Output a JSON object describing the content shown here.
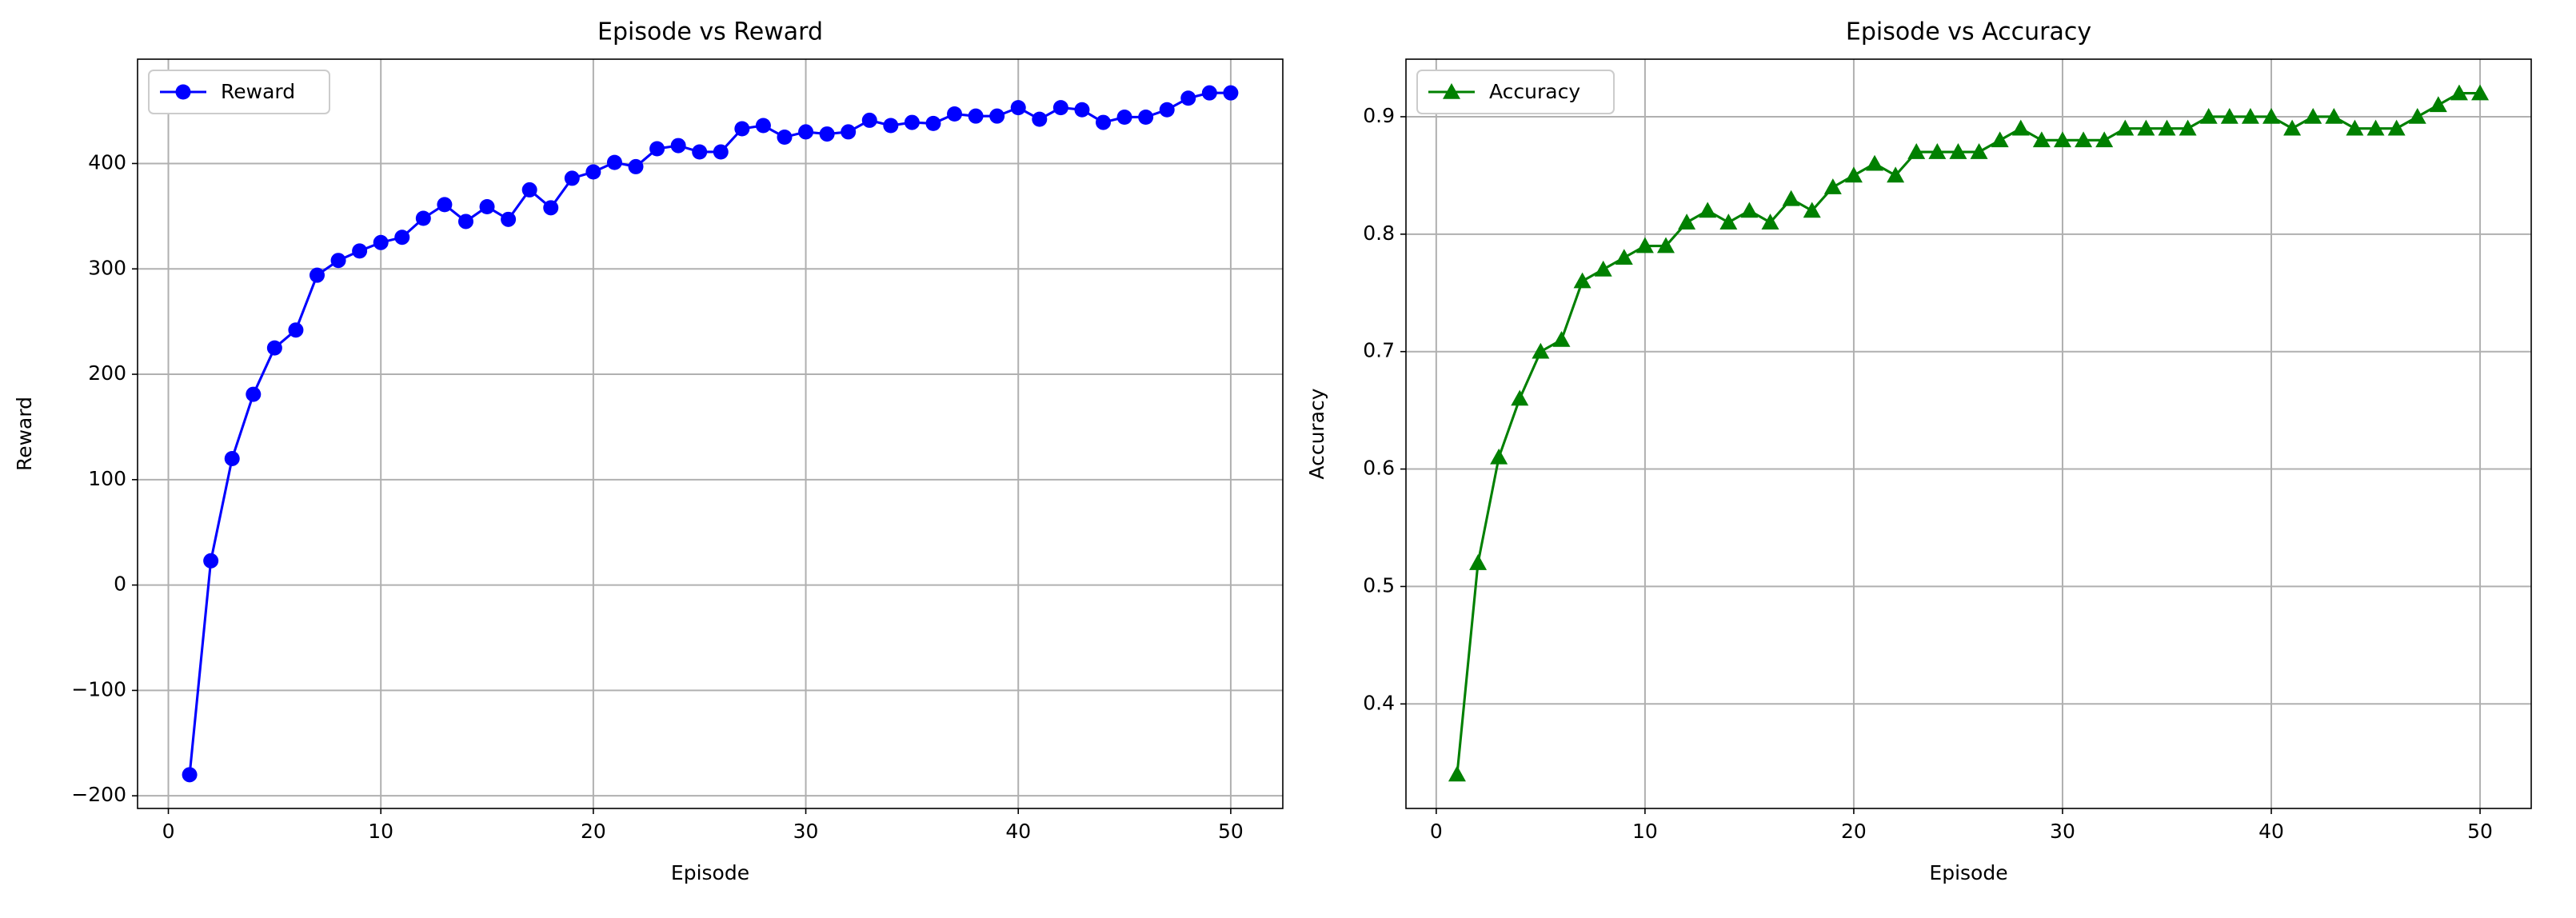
{
  "chart_data": [
    {
      "type": "line",
      "title": "Episode vs Reward",
      "x_label": "Episode",
      "y_label": "Reward",
      "x": [
        1,
        2,
        3,
        4,
        5,
        6,
        7,
        8,
        9,
        10,
        11,
        12,
        13,
        14,
        15,
        16,
        17,
        18,
        19,
        20,
        21,
        22,
        23,
        24,
        25,
        26,
        27,
        28,
        29,
        30,
        31,
        32,
        33,
        34,
        35,
        36,
        37,
        38,
        39,
        40,
        41,
        42,
        43,
        44,
        45,
        46,
        47,
        48,
        49,
        50
      ],
      "series": [
        {
          "name": "Reward",
          "color": "#0000ff",
          "marker": "circle",
          "values": [
            -180,
            23,
            120,
            181,
            225,
            242,
            294,
            308,
            317,
            325,
            330,
            348,
            361,
            345,
            359,
            347,
            375,
            358,
            386,
            392,
            401,
            397,
            414,
            417,
            411,
            411,
            433,
            436,
            425,
            430,
            428,
            430,
            441,
            436,
            439,
            438,
            447,
            445,
            445,
            453,
            442,
            453,
            451,
            439,
            444,
            444,
            451,
            462,
            467,
            467
          ]
        }
      ],
      "xlim": [
        -1.45,
        52.45
      ],
      "xticks": [
        0,
        10,
        20,
        30,
        40,
        50
      ],
      "ylim": [
        -212,
        499
      ],
      "yticks": [
        {
          "value": -200,
          "label": "−200"
        },
        {
          "value": -100,
          "label": "−100"
        },
        0,
        100,
        200,
        300,
        400
      ],
      "grid": true,
      "legend": "upper left"
    },
    {
      "type": "line",
      "title": "Episode vs Accuracy",
      "x_label": "Episode",
      "y_label": "Accuracy",
      "x": [
        1,
        2,
        3,
        4,
        5,
        6,
        7,
        8,
        9,
        10,
        11,
        12,
        13,
        14,
        15,
        16,
        17,
        18,
        19,
        20,
        21,
        22,
        23,
        24,
        25,
        26,
        27,
        28,
        29,
        30,
        31,
        32,
        33,
        34,
        35,
        36,
        37,
        38,
        39,
        40,
        41,
        42,
        43,
        44,
        45,
        46,
        47,
        48,
        49,
        50
      ],
      "series": [
        {
          "name": "Accuracy",
          "color": "#008000",
          "marker": "triangle",
          "values": [
            0.34,
            0.52,
            0.61,
            0.66,
            0.7,
            0.71,
            0.76,
            0.77,
            0.78,
            0.79,
            0.79,
            0.81,
            0.82,
            0.81,
            0.82,
            0.81,
            0.83,
            0.82,
            0.84,
            0.85,
            0.86,
            0.85,
            0.87,
            0.87,
            0.87,
            0.87,
            0.88,
            0.89,
            0.88,
            0.88,
            0.88,
            0.88,
            0.89,
            0.89,
            0.89,
            0.89,
            0.9,
            0.9,
            0.9,
            0.9,
            0.89,
            0.9,
            0.9,
            0.89,
            0.89,
            0.89,
            0.9,
            0.91,
            0.92,
            0.92
          ]
        }
      ],
      "xlim": [
        -1.45,
        52.45
      ],
      "xticks": [
        0,
        10,
        20,
        30,
        40,
        50
      ],
      "ylim": [
        0.311,
        0.949
      ],
      "yticks": [
        0.4,
        0.5,
        0.6,
        0.7,
        0.8,
        0.9
      ],
      "grid": true,
      "legend": "upper left"
    }
  ]
}
